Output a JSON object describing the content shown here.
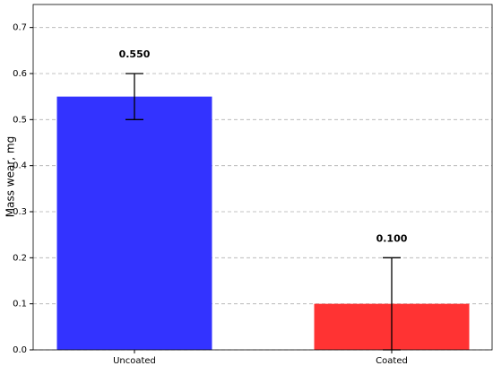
{
  "chart_data": {
    "type": "bar",
    "ylabel": "Mass wear, mg",
    "categories": [
      "Uncoated",
      "Coated"
    ],
    "values": [
      0.55,
      0.1
    ],
    "value_labels": [
      "0.550",
      "0.100"
    ],
    "errors": [
      0.05,
      0.1
    ],
    "colors": [
      "#3333ff",
      "#ff3333"
    ],
    "ylim": [
      0,
      0.75
    ],
    "yticks": [
      {
        "value": 0,
        "label": "0.0"
      },
      0.1,
      0.2,
      0.3,
      0.4,
      0.5,
      0.6,
      0.7
    ],
    "grid": true
  }
}
